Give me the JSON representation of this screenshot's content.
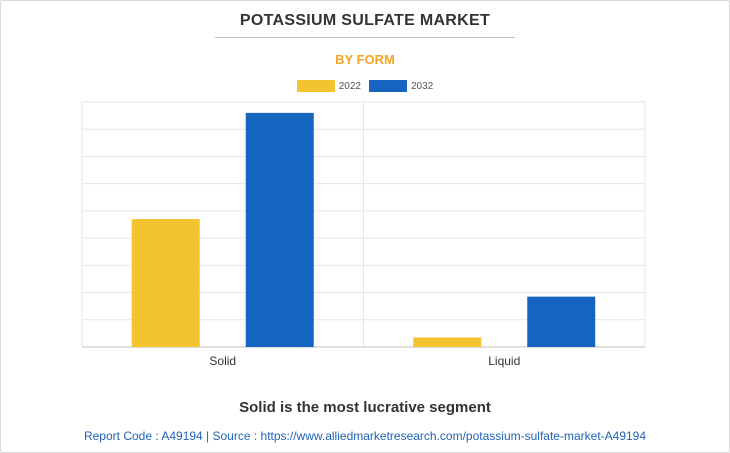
{
  "header": {
    "title": "POTASSIUM SULFATE MARKET",
    "subtitle": "BY FORM",
    "subtitle_color": "#f5a623"
  },
  "chart_data": {
    "type": "bar",
    "categories": [
      "Solid",
      "Liquid"
    ],
    "series": [
      {
        "name": "2022",
        "color": "#f4c430",
        "values": [
          4.7,
          0.35
        ]
      },
      {
        "name": "2032",
        "color": "#1565c0",
        "values": [
          8.6,
          1.85
        ]
      }
    ],
    "ylim": [
      0,
      9
    ],
    "grid": true,
    "legend_position": "top-center",
    "y_tick_labels_shown": false
  },
  "caption": "Solid is the most lucrative segment",
  "footer": "Report Code : A49194  |  Source : https://www.alliedmarketresearch.com/potassium-sulfate-market-A49194"
}
